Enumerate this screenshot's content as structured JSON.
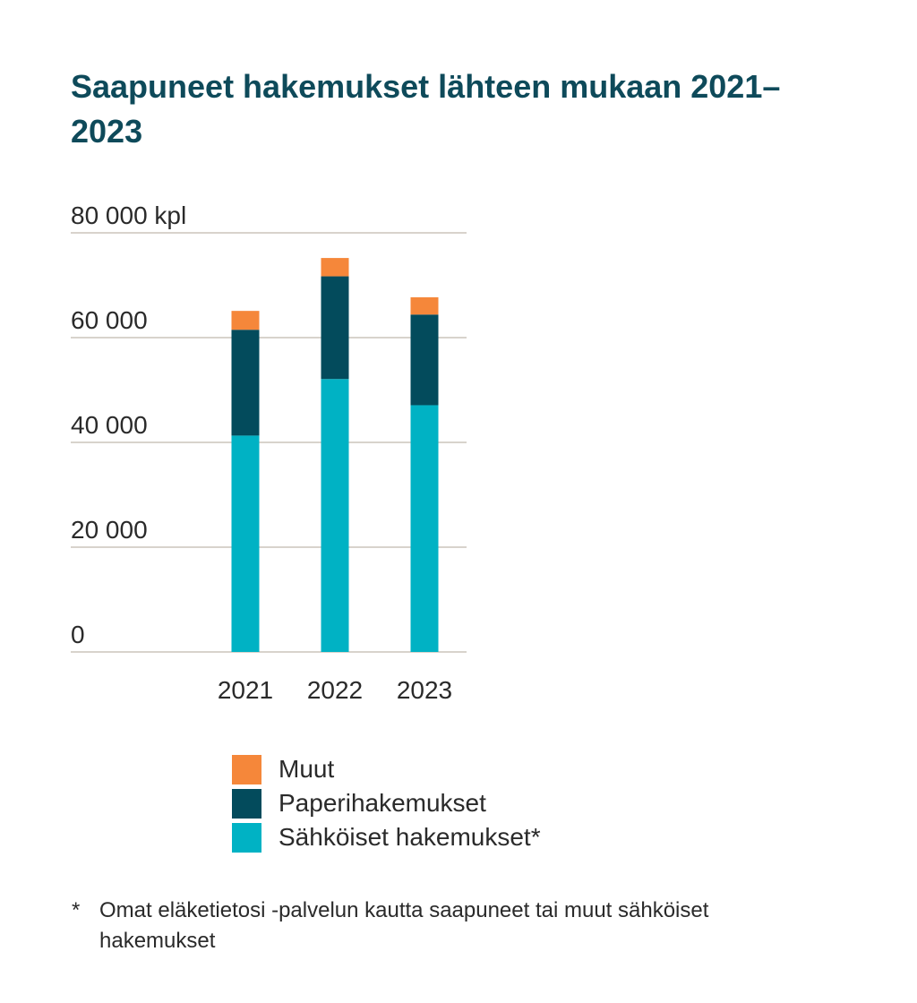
{
  "title": "Saapuneet hakemukset lähteen mukaan 2021–2023",
  "chart_data": {
    "type": "bar",
    "stacked": true,
    "title": "Saapuneet hakemukset lähteen mukaan 2021–2023",
    "ylabel": "",
    "xlabel": "",
    "unit": "kpl",
    "ylim": [
      0,
      80000
    ],
    "yticks": [
      0,
      20000,
      40000,
      60000,
      80000
    ],
    "ytick_labels": [
      "0",
      "20 000",
      "40 000",
      "60 000",
      "80 000 kpl"
    ],
    "categories": [
      "2021",
      "2022",
      "2023"
    ],
    "series": [
      {
        "name": "Sähköiset hakemukset*",
        "color": "#00b2c4",
        "values": [
          41300,
          52100,
          47100
        ]
      },
      {
        "name": "Paperihakemukset",
        "color": "#034b5c",
        "values": [
          20200,
          19600,
          17300
        ]
      },
      {
        "name": "Muut",
        "color": "#f5873a",
        "values": [
          3600,
          3500,
          3300
        ]
      }
    ],
    "legend_order": [
      "Muut",
      "Paperihakemukset",
      "Sähköiset hakemukset*"
    ],
    "grid": true,
    "legend_position": "bottom"
  },
  "footnote": {
    "marker": "*",
    "text": "Omat eläketietosi -palvelun kautta saapuneet tai muut sähköiset hakemukset"
  }
}
